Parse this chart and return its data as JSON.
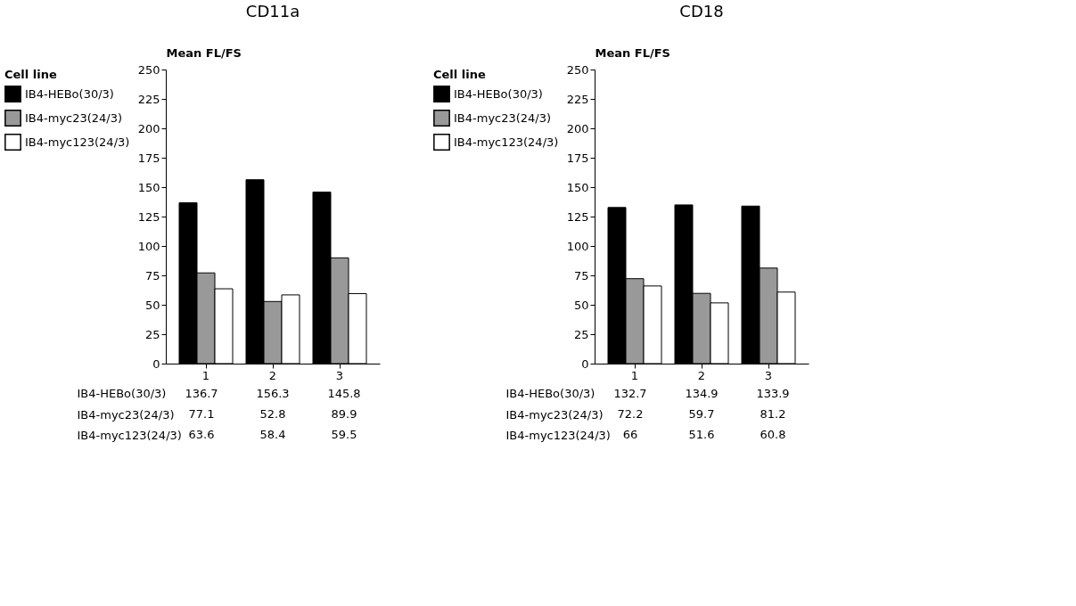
{
  "chart_data": [
    {
      "type": "bar",
      "title": "CD11a",
      "ylabel": "Mean FL/FS",
      "legend_title": "Cell line",
      "categories": [
        "1",
        "2",
        "3"
      ],
      "series": [
        {
          "name": "IB4-HEBo(30/3)",
          "color": "#000000",
          "values": [
            136.7,
            156.3,
            145.8
          ]
        },
        {
          "name": "IB4-myc23(24/3)",
          "color": "#999999",
          "values": [
            77.1,
            52.8,
            89.9
          ]
        },
        {
          "name": "IB4-myc123(24/3)",
          "color": "#ffffff",
          "values": [
            63.6,
            58.4,
            59.5
          ]
        }
      ],
      "ylim": [
        0,
        250
      ],
      "yticks": [
        0,
        25,
        50,
        75,
        100,
        125,
        150,
        175,
        200,
        225,
        250
      ],
      "grid": false,
      "legend": "left",
      "data_labels": true
    },
    {
      "type": "bar",
      "title": "CD18",
      "ylabel": "Mean FL/FS",
      "legend_title": "Cell line",
      "categories": [
        "1",
        "2",
        "3"
      ],
      "series": [
        {
          "name": "IB4-HEBo(30/3)",
          "color": "#000000",
          "values": [
            132.7,
            134.9,
            133.9
          ]
        },
        {
          "name": "IB4-myc23(24/3)",
          "color": "#999999",
          "values": [
            72.2,
            59.7,
            81.2
          ]
        },
        {
          "name": "IB4-myc123(24/3)",
          "color": "#ffffff",
          "values": [
            66,
            51.6,
            60.8
          ]
        }
      ],
      "ylim": [
        0,
        250
      ],
      "yticks": [
        0,
        25,
        50,
        75,
        100,
        125,
        150,
        175,
        200,
        225,
        250
      ],
      "grid": false,
      "legend": "left",
      "data_labels": true
    }
  ]
}
